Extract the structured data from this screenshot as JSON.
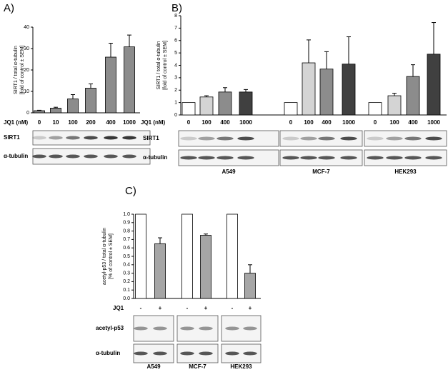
{
  "chart_data": [
    {
      "type": "bar",
      "panel": "A)",
      "ylabel": [
        "SIRT1 / total α-tubulin",
        "[fold of control ± SEM]"
      ],
      "xlabel": "JQ1 (nM)",
      "categories": [
        "0",
        "10",
        "100",
        "200",
        "400",
        "1000"
      ],
      "values": [
        1,
        2.2,
        6.5,
        11.5,
        26,
        30.8
      ],
      "errors": [
        0.2,
        0.4,
        2,
        2,
        6.5,
        5.5
      ],
      "color": "#8c8c8c",
      "ylim": [
        0,
        40
      ],
      "yticks": [
        0,
        10,
        20,
        30,
        40
      ],
      "blot_rows": [
        "SIRT1",
        "α-tubulin"
      ]
    },
    {
      "type": "bar",
      "panel": "B)",
      "ylabel": [
        "SIRT1 / total α-tubulin",
        "[fold of control ± SEM]"
      ],
      "xlabel": "JQ1 (nM)",
      "categories": [
        "0",
        "100",
        "400",
        "1000"
      ],
      "colors": [
        "#ffffff",
        "#d4d4d4",
        "#8c8c8c",
        "#404040"
      ],
      "groups": [
        {
          "name": "A549",
          "values": [
            1,
            1.45,
            1.85,
            1.85
          ],
          "errors": [
            null,
            0.1,
            0.35,
            0.2
          ]
        },
        {
          "name": "MCF-7",
          "values": [
            1,
            4.2,
            3.7,
            4.1
          ],
          "errors": [
            null,
            1.85,
            1.4,
            2.2
          ]
        },
        {
          "name": "HEK293",
          "values": [
            1,
            1.55,
            3.1,
            4.9
          ],
          "errors": [
            null,
            0.2,
            0.95,
            2.55
          ]
        }
      ],
      "ylim": [
        0,
        8
      ],
      "yticks": [
        0,
        1,
        2,
        3,
        4,
        5,
        6,
        7,
        8
      ],
      "blot_rows": [
        "SIRT1",
        "α-tubulin"
      ]
    },
    {
      "type": "bar",
      "panel": "C)",
      "ylabel": [
        "acetyl-p53 / total α-tubulin",
        "[% of control ± SEM]"
      ],
      "xlabel": "JQ1",
      "categories": [
        "-",
        "+"
      ],
      "colors": [
        "#ffffff",
        "#a6a6a6"
      ],
      "groups": [
        {
          "name": "A549",
          "values": [
            1,
            0.65
          ],
          "errors": [
            null,
            0.07
          ]
        },
        {
          "name": "MCF-7",
          "values": [
            1,
            0.75
          ],
          "errors": [
            null,
            0.015
          ]
        },
        {
          "name": "HEK293",
          "values": [
            1,
            0.3
          ],
          "errors": [
            null,
            0.1
          ]
        }
      ],
      "ylim": [
        0,
        1
      ],
      "yticks": [
        {
          "value": 0,
          "label": "0.0"
        },
        0.1,
        0.2,
        0.3,
        0.4,
        0.5,
        0.6,
        0.7,
        0.8,
        0.9,
        {
          "value": 1,
          "label": "1.0"
        }
      ],
      "blot_rows": [
        "acetyl-p53",
        "α-tubulin"
      ]
    }
  ]
}
